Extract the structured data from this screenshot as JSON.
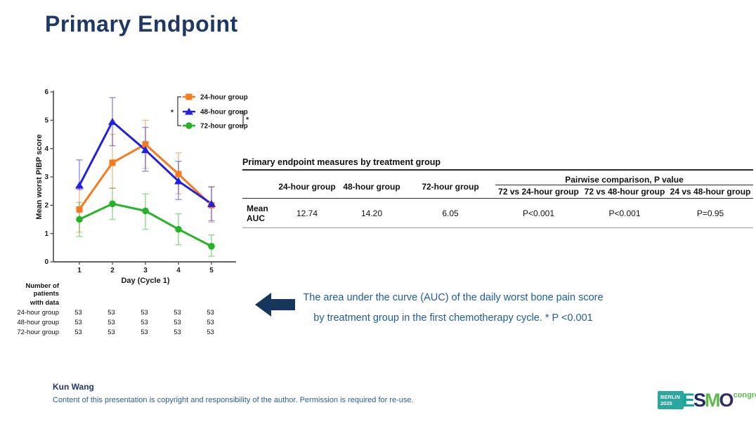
{
  "title": "Primary Endpoint",
  "chart_data": {
    "type": "line",
    "x": [
      1,
      2,
      3,
      4,
      5
    ],
    "xlabel": "Day (Cycle 1)",
    "ylabel": "Mean worst PIBP score",
    "ylim": [
      0,
      6
    ],
    "yticks": [
      0,
      1,
      2,
      3,
      4,
      5,
      6
    ],
    "legend_position": "top-right",
    "series": [
      {
        "name": "24-hour group",
        "color": "#F87A1D",
        "marker": "square",
        "values": [
          1.85,
          3.5,
          4.15,
          3.1,
          2.0
        ],
        "err_lo": [
          1.05,
          2.6,
          3.3,
          2.4,
          1.4
        ],
        "err_hi": [
          2.6,
          4.5,
          5.0,
          3.85,
          2.65
        ]
      },
      {
        "name": "48-hour group",
        "color": "#2121DF",
        "marker": "triangle",
        "values": [
          2.7,
          4.95,
          3.95,
          2.85,
          2.05
        ],
        "err_lo": [
          2.55,
          4.1,
          3.2,
          2.2,
          1.45
        ],
        "err_hi": [
          3.6,
          5.8,
          4.75,
          3.55,
          2.65
        ]
      },
      {
        "name": "72-hour group",
        "color": "#27B327",
        "marker": "circle",
        "values": [
          1.5,
          2.05,
          1.8,
          1.15,
          0.55
        ],
        "err_lo": [
          0.9,
          1.5,
          1.15,
          0.6,
          0.2
        ],
        "err_hi": [
          2.1,
          2.6,
          2.4,
          1.7,
          0.95
        ]
      }
    ],
    "legend_brackets": [
      {
        "from": 0,
        "to": 2,
        "side": "left",
        "label": "*"
      },
      {
        "from": 1,
        "to": 2,
        "side": "right",
        "label": "*"
      }
    ]
  },
  "table": {
    "title": "Primary endpoint measures by treatment group",
    "group_headers": [
      "24-hour group",
      "48-hour group",
      "72-hour group"
    ],
    "pairwise_header": "Pairwise comparison, P value",
    "pairwise_subheaders": [
      "72 vs 24-hour group",
      "72 vs 48-hour group",
      "24 vs 48-hour group"
    ],
    "row_label": "Mean AUC",
    "row_values": [
      "12.74",
      "14.20",
      "6.05",
      "P<0.001",
      "P<0.001",
      "P=0.95"
    ]
  },
  "patients": {
    "title_line1": "Number of patients",
    "title_line2": "with data",
    "rows": [
      {
        "label": "24-hour group",
        "values": [
          "53",
          "53",
          "53",
          "53",
          "53"
        ]
      },
      {
        "label": "48-hour group",
        "values": [
          "53",
          "53",
          "53",
          "53",
          "53"
        ]
      },
      {
        "label": "72-hour group",
        "values": [
          "53",
          "53",
          "53",
          "53",
          "53"
        ]
      }
    ]
  },
  "caption": {
    "line1": "The area under the curve (AUC) of the daily worst bone pain score",
    "line2": "by treatment group in the first chemotherapy cycle. * P <0.001"
  },
  "footer": {
    "author": "Kun Wang",
    "copyright": "Content of this presentation is copyright and responsibility of the author. Permission is required for re-use."
  },
  "logo": {
    "venue": "BERLIN",
    "year": "2025",
    "letters": [
      "E",
      "S",
      "M",
      "O"
    ],
    "suffix": "congress"
  },
  "colors": {
    "title": "#1F3864",
    "caption": "#1F5C9B",
    "arrow": "#16365C"
  }
}
